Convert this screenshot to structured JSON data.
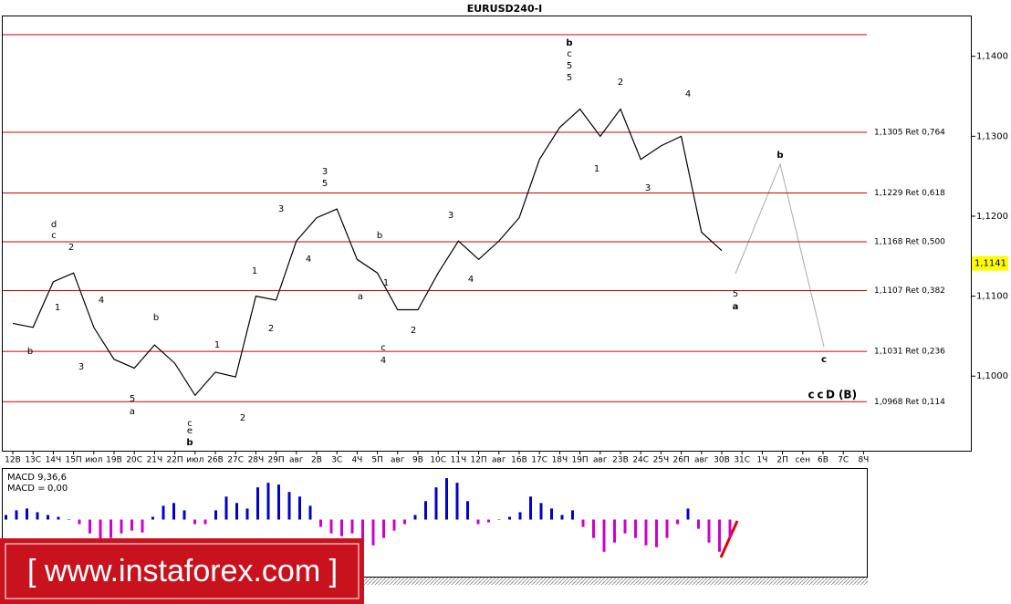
{
  "chart_data": {
    "type": "line",
    "title": "EURUSD240-I",
    "categories": [
      "12В",
      "13С",
      "14Ч",
      "15П",
      "июл",
      "19В",
      "20С",
      "21Ч",
      "22П",
      "июл",
      "26В",
      "27С",
      "28Ч",
      "29П",
      "авг",
      "2В",
      "3С",
      "4Ч",
      "5П",
      "авг",
      "9В",
      "10С",
      "11Ч",
      "12П",
      "авг",
      "16В",
      "17С",
      "18Ч",
      "19П",
      "авг",
      "23В",
      "24С",
      "25Ч",
      "26П",
      "авг",
      "30В",
      "31С",
      "1Ч",
      "2П",
      "сен",
      "6В",
      "7С",
      "8Ч"
    ],
    "series": [
      {
        "name": "EURUSD",
        "color": "#000000",
        "values": [
          1.1066,
          1.1061,
          1.1118,
          1.1129,
          1.1061,
          1.1021,
          1.101,
          1.1039,
          1.1016,
          1.0976,
          1.1005,
          1.0999,
          1.11,
          1.1095,
          1.1169,
          1.1198,
          1.1209,
          1.1146,
          1.1129,
          1.1083,
          1.1083,
          1.1129,
          1.1169,
          1.1146,
          1.1169,
          1.1198,
          1.1271,
          1.1311,
          1.1334,
          1.13,
          1.1334,
          1.1271,
          1.1288,
          1.13,
          1.118,
          1.1157,
          null,
          null,
          null,
          null,
          null,
          null,
          null
        ]
      }
    ],
    "ylim": [
      1.0909,
      1.1451
    ],
    "yticks": [
      {
        "value": 1.1,
        "label": "1,1000"
      },
      {
        "value": 1.11,
        "label": "1,1100"
      },
      {
        "value": 1.12,
        "label": "1,1200"
      },
      {
        "value": 1.13,
        "label": "1,1300"
      },
      {
        "value": 1.14,
        "label": "1,1400"
      }
    ],
    "current_price": {
      "value": 1.1141,
      "label": "1,1141"
    },
    "levels_color": "#cc0000",
    "levels": [
      1.1427,
      {
        "value": 1.1305,
        "label": "1,1305 Ret 0,764"
      },
      {
        "value": 1.1229,
        "label": "1,1229 Ret 0,618"
      },
      {
        "value": 1.1168,
        "label": "1,1168 Ret 0,500"
      },
      {
        "value": 1.1107,
        "label": "1,1107 Ret 0,382"
      },
      {
        "value": 1.1031,
        "label": "1,1031 Ret 0,236"
      },
      {
        "value": 1.0968,
        "label": "1,0968 Ret 0,114"
      }
    ],
    "wave_labels": [
      {
        "text": "b",
        "color": "#0000cc"
      },
      {
        "text": "c",
        "color": "#000000"
      },
      {
        "text": "5",
        "color": "#0000cc"
      },
      {
        "text": "5",
        "color": "#000000"
      },
      {
        "text": "d",
        "color": "#0000cc"
      },
      {
        "text": "c",
        "color": "#000000"
      },
      {
        "text": "2",
        "color": "#000000"
      },
      {
        "text": "1",
        "color": "#000000"
      },
      {
        "text": "b",
        "color": "#000000"
      },
      {
        "text": "4",
        "color": "#000000"
      },
      {
        "text": "3",
        "color": "#000000"
      },
      {
        "text": "b",
        "color": "#000000"
      },
      {
        "text": "5",
        "color": "#000000"
      },
      {
        "text": "a",
        "color": "#000000"
      },
      {
        "text": "1",
        "color": "#0000cc"
      },
      {
        "text": "c",
        "color": "#0000cc"
      },
      {
        "text": "e",
        "color": "#0000cc"
      },
      {
        "text": "b",
        "color": "#000000"
      },
      {
        "text": "2",
        "color": "#0000cc"
      },
      {
        "text": "1",
        "color": "#000000"
      },
      {
        "text": "2",
        "color": "#000000"
      },
      {
        "text": "3",
        "color": "#000000"
      },
      {
        "text": "4",
        "color": "#000000"
      },
      {
        "text": "3",
        "color": "#0000cc"
      },
      {
        "text": "5",
        "color": "#000000"
      },
      {
        "text": "b",
        "color": "#000000"
      },
      {
        "text": "1",
        "color": "#000000"
      },
      {
        "text": "a",
        "color": "#000000"
      },
      {
        "text": "c",
        "color": "#000000"
      },
      {
        "text": "4",
        "color": "#0000cc"
      },
      {
        "text": "2",
        "color": "#000000"
      },
      {
        "text": "3",
        "color": "#000000"
      },
      {
        "text": "4",
        "color": "#000000"
      },
      {
        "text": "1",
        "color": "#0000cc"
      },
      {
        "text": "2",
        "color": "#0000cc"
      },
      {
        "text": "3",
        "color": "#0000cc"
      },
      {
        "text": "4",
        "color": "#0000cc"
      },
      {
        "text": "5",
        "color": "#0000cc"
      },
      {
        "text": "a",
        "color": "#000000"
      },
      {
        "text": "b",
        "color": "#000000"
      },
      {
        "text": "c",
        "color": "#000000"
      },
      {
        "text": "c",
        "color": "#0000cc"
      },
      {
        "text": "c",
        "color": "#008080"
      },
      {
        "text": "D",
        "color": "#1e90ff"
      },
      {
        "text": "(B)",
        "color": "#0000cc"
      }
    ],
    "macd": {
      "title": "MACD 9,36,6",
      "value_name": "MACD =",
      "value": 0,
      "value_label": "0,00",
      "positive_color": "#0000cc",
      "negative_color": "#cc00cc",
      "ylim": [
        -62,
        55
      ],
      "values": [
        5,
        10,
        12,
        8,
        5,
        3,
        0,
        -5,
        -15,
        -22,
        -20,
        -15,
        -12,
        -14,
        3,
        15,
        18,
        10,
        -5,
        -5,
        10,
        25,
        18,
        12,
        35,
        40,
        38,
        30,
        25,
        15,
        -8,
        -15,
        -18,
        -15,
        -25,
        -28,
        -20,
        -12,
        -5,
        5,
        20,
        35,
        45,
        40,
        20,
        -5,
        -3,
        0,
        3,
        8,
        25,
        18,
        12,
        5,
        10,
        -8,
        -20,
        -35,
        -25,
        -15,
        -20,
        -28,
        -30,
        -20,
        -5,
        12,
        -10,
        -25,
        -35,
        -20
      ]
    },
    "watermark": "[ www.instaforex.com ]"
  }
}
